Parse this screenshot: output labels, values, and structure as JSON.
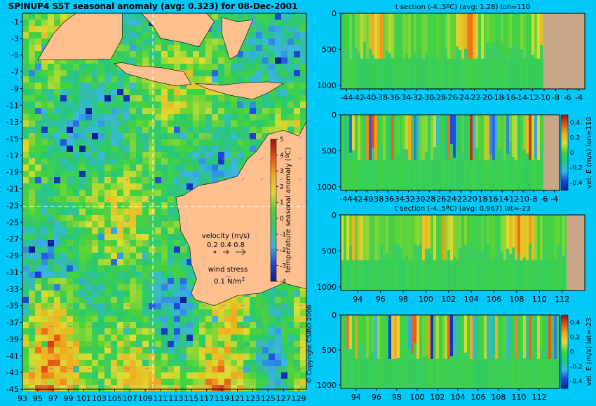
{
  "colors": {
    "background": "#00c8f8",
    "land": "#ffc090",
    "land_section": "#c8a888",
    "colormap": [
      "#0a1e96",
      "#1e46dc",
      "#3cb4e6",
      "#28c878",
      "#46d23c",
      "#dcdc32",
      "#f0aa1e",
      "#e65014",
      "#961414"
    ]
  },
  "map": {
    "title": "SPINUP4 SST seasonal anomaly (avg: 0.323) for 08-Dec-2001",
    "lat_ticks": [
      "-1",
      "-3",
      "-5",
      "-7",
      "-9",
      "-11",
      "-13",
      "-15",
      "-17",
      "-19",
      "-21",
      "-23",
      "-25",
      "-27",
      "-29",
      "-31",
      "-33",
      "-35",
      "-37",
      "-39",
      "-41",
      "-43",
      "-45"
    ],
    "lon_ticks": [
      "93",
      "95",
      "97",
      "99",
      "101",
      "103",
      "105",
      "107",
      "109",
      "111",
      "113",
      "115",
      "117",
      "119",
      "121",
      "123",
      "125",
      "127",
      "129"
    ],
    "colorbar_ticks": [
      "5",
      "4",
      "3",
      "2",
      "1",
      "0",
      "-1",
      "-2",
      "-3",
      "-4"
    ],
    "colorbar_label": "temperature seasonal anomaly (ºC)",
    "velocity_label": "velocity (m/s)",
    "velocity_scale": "0.2 0.4 0.8",
    "wind_label": "wind stress",
    "wind_value": "0.1 N/m",
    "wind_sup": "2",
    "copyright": "© Copyright CSIRO 2006"
  },
  "panels": [
    {
      "title": "t section (-4..5ºC) (avg: 1.28) lon=110",
      "x_ticks": [
        "-44",
        "-42",
        "-40",
        "-38",
        "-36",
        "-34",
        "-32",
        "-30",
        "-28",
        "-26",
        "-24",
        "-22",
        "-20",
        "-18",
        "-16",
        "-14",
        "-12",
        "-10",
        "-8",
        "-6",
        "-4"
      ],
      "y_ticks": [
        "0",
        "500",
        "1000"
      ],
      "colorbar": false
    },
    {
      "title": "",
      "x_ticks": [
        "-44",
        "-42",
        "-40",
        "-38",
        "-36",
        "-34",
        "-32",
        "-30",
        "-28",
        "-26",
        "-24",
        "-22",
        "-20",
        "-18",
        "-16",
        "-14",
        "-12",
        "-10",
        "-8",
        "-6",
        "-4"
      ],
      "y_ticks": [
        "0",
        "500",
        "1000"
      ],
      "colorbar": true,
      "colorbar_ticks": [
        "0.4",
        "0.2",
        "0",
        "-0.2",
        "-0.4"
      ],
      "colorbar_label": "vel. E (m/s) lon=110"
    },
    {
      "title": "t section (-4..5ºC) (avg: 0.967) lat=-23",
      "x_ticks": [
        "94",
        "96",
        "98",
        "100",
        "102",
        "104",
        "106",
        "108",
        "110",
        "112"
      ],
      "y_ticks": [
        "0",
        "500",
        "1000"
      ],
      "colorbar": false
    },
    {
      "title": "",
      "x_ticks": [
        "94",
        "96",
        "98",
        "100",
        "102",
        "104",
        "106",
        "108",
        "110",
        "112"
      ],
      "y_ticks": [
        "0",
        "500",
        "1000"
      ],
      "colorbar": true,
      "colorbar_ticks": [
        "0.4",
        "0.2",
        "0",
        "-0.2",
        "-0.4"
      ],
      "colorbar_label": "vel. E (m/s) lat=-23"
    }
  ],
  "chart_data": [
    {
      "type": "heatmap",
      "title": "SPINUP4 SST seasonal anomaly (avg: 0.323) for 08-Dec-2001",
      "xlabel": "",
      "ylabel": "",
      "xlim": [
        93,
        130
      ],
      "ylim": [
        -45,
        0
      ],
      "colorbar_label": "temperature seasonal anomaly (ºC)",
      "color_range": [
        -4,
        5
      ],
      "average": 0.323,
      "section_lines": {
        "lon": 110,
        "lat": -23
      }
    },
    {
      "type": "heatmap",
      "title": "t section (-4..5ºC) (avg: 1.28) lon=110",
      "xlim": [
        -45,
        -3
      ],
      "ylim": [
        1050,
        0
      ],
      "color_range": [
        -4,
        5
      ],
      "average": 1.28
    },
    {
      "type": "heatmap",
      "title": "",
      "xlim": [
        -45,
        -3
      ],
      "ylim": [
        1050,
        0
      ],
      "colorbar_label": "vel. E (m/s) lon=110",
      "color_range": [
        -0.5,
        0.5
      ]
    },
    {
      "type": "heatmap",
      "title": "t section (-4..5ºC) (avg: 0.967) lat=-23",
      "xlim": [
        92.5,
        114
      ],
      "ylim": [
        1050,
        0
      ],
      "color_range": [
        -4,
        5
      ],
      "average": 0.967
    },
    {
      "type": "heatmap",
      "title": "",
      "xlim": [
        92.5,
        114
      ],
      "ylim": [
        1050,
        0
      ],
      "colorbar_label": "vel. E (m/s) lat=-23",
      "color_range": [
        -0.5,
        0.5
      ]
    }
  ]
}
